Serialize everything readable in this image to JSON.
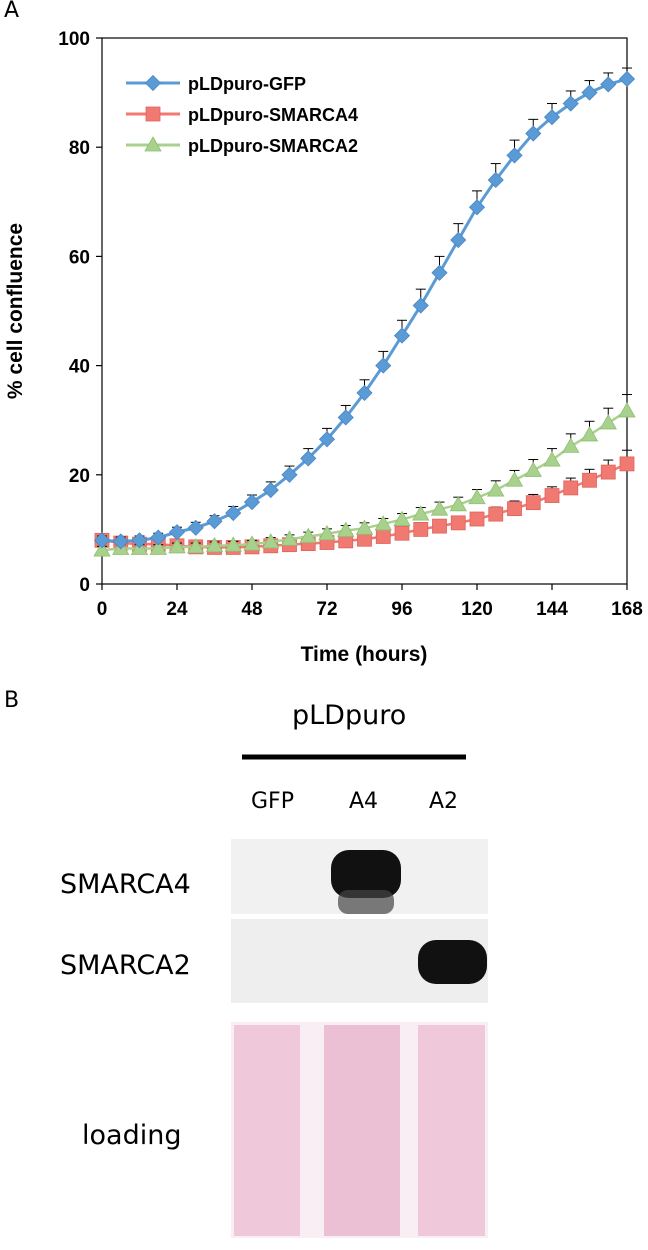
{
  "panels": {
    "a_label": "A",
    "b_label": "B"
  },
  "chart_data": {
    "type": "line",
    "title": "",
    "xlabel": "Time (hours)",
    "ylabel": "% cell confluence",
    "xlim": [
      0,
      168
    ],
    "ylim": [
      0,
      100
    ],
    "xticks": [
      0,
      24,
      48,
      72,
      96,
      120,
      144,
      168
    ],
    "yticks": [
      0,
      20,
      40,
      60,
      80,
      100
    ],
    "grid": false,
    "legend_position": "top-left",
    "x": [
      0,
      6,
      12,
      18,
      24,
      30,
      36,
      42,
      48,
      54,
      60,
      66,
      72,
      78,
      84,
      90,
      96,
      102,
      108,
      114,
      120,
      126,
      132,
      138,
      144,
      150,
      156,
      162,
      168
    ],
    "series": [
      {
        "name": "pLDpuro-GFP",
        "color": "#5b9bd5",
        "marker": "diamond",
        "values": [
          8,
          7.8,
          8,
          8.5,
          9.5,
          10.3,
          11.5,
          13,
          15,
          17.2,
          20,
          23,
          26.5,
          30.5,
          35,
          40,
          45.5,
          51,
          57,
          63,
          69,
          74,
          78.5,
          82.5,
          85.5,
          88,
          90,
          91.5,
          92.5
        ],
        "error": [
          0.8,
          0.8,
          0.8,
          0.8,
          0.9,
          1,
          1,
          1.2,
          1.3,
          1.5,
          1.6,
          1.8,
          2,
          2.2,
          2.4,
          2.6,
          2.8,
          3,
          3,
          3,
          3,
          3,
          2.8,
          2.6,
          2.5,
          2.3,
          2.2,
          2.1,
          2
        ]
      },
      {
        "name": "pLDpuro-SMARCA4",
        "color": "#f07a72",
        "marker": "square",
        "values": [
          8,
          7.5,
          7.3,
          7.3,
          7,
          6.8,
          6.7,
          6.7,
          6.8,
          7,
          7.2,
          7.4,
          7.6,
          7.9,
          8.2,
          8.7,
          9.3,
          10,
          10.6,
          11.2,
          11.9,
          12.8,
          13.8,
          14.9,
          16.2,
          17.6,
          19,
          20.5,
          22
        ],
        "error": [
          0.7,
          0.7,
          0.7,
          0.7,
          0.7,
          0.7,
          0.7,
          0.7,
          0.7,
          0.7,
          0.8,
          0.8,
          0.8,
          0.9,
          0.9,
          1,
          1,
          1,
          1.1,
          1.1,
          1.2,
          1.3,
          1.4,
          1.5,
          1.6,
          1.8,
          2,
          2.2,
          2.5
        ]
      },
      {
        "name": "pLDpuro-SMARCA2",
        "color": "#a9d18e",
        "marker": "triangle",
        "values": [
          6.2,
          6.5,
          6.5,
          6.5,
          6.8,
          6.8,
          7,
          7.1,
          7.3,
          7.7,
          8.2,
          8.7,
          9.2,
          9.8,
          10.2,
          11,
          11.8,
          12.8,
          13.7,
          14.5,
          15.8,
          17.2,
          19,
          20.8,
          22.7,
          25.2,
          27.3,
          29.5,
          31.7
        ],
        "error": [
          0.7,
          0.7,
          0.7,
          0.7,
          0.7,
          0.7,
          0.7,
          0.7,
          0.7,
          0.8,
          0.8,
          0.8,
          0.9,
          0.9,
          1,
          1,
          1.1,
          1.2,
          1.3,
          1.4,
          1.5,
          1.7,
          1.8,
          2,
          2.1,
          2.3,
          2.5,
          2.7,
          3
        ]
      }
    ]
  },
  "blot": {
    "vector_label": "pLDpuro",
    "lanes": [
      "GFP",
      "A4",
      "A2"
    ],
    "rows": [
      "SMARCA4",
      "SMARCA2",
      "loading"
    ],
    "band_color": "#111111",
    "stain_color": "#e8b9cf"
  }
}
